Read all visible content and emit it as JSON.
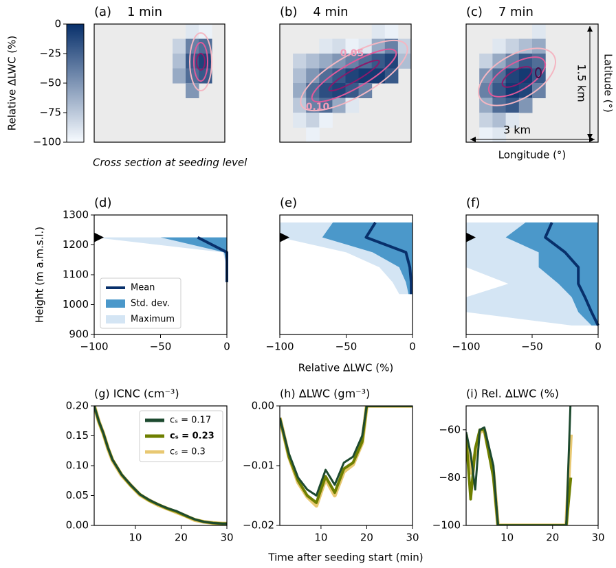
{
  "figure_label_x_bottom": "Time after seeding start (min)",
  "subtitle": "Cross section at seeding level",
  "colorbar": {
    "label": "Relative ΔLWC (%)",
    "lim": [
      -100,
      0
    ],
    "colors": [
      "#f7fbff",
      "#08306b"
    ],
    "ticks": [
      0,
      {
        "value": -25,
        "label": "−25"
      },
      {
        "value": -50,
        "label": "−50"
      },
      {
        "value": -75,
        "label": "−75"
      },
      {
        "value": -100,
        "label": "−100"
      }
    ]
  },
  "chart_data": [
    {
      "type": "heatmap",
      "title": "(a)    1 min",
      "background": "#ebebeb",
      "cells": [
        [
          null,
          null,
          null,
          null,
          null,
          null,
          null,
          -90,
          -95,
          null
        ],
        [
          null,
          null,
          null,
          null,
          null,
          null,
          -80,
          -40,
          -30,
          null
        ],
        [
          null,
          null,
          null,
          null,
          null,
          null,
          -70,
          -20,
          -10,
          null
        ],
        [
          null,
          null,
          null,
          null,
          null,
          null,
          -60,
          -30,
          -20,
          null
        ],
        [
          null,
          null,
          null,
          null,
          null,
          null,
          null,
          -50,
          null,
          null
        ],
        [
          null,
          null,
          null,
          null,
          null,
          null,
          null,
          null,
          null,
          null
        ],
        [
          null,
          null,
          null,
          null,
          null,
          null,
          null,
          null,
          null,
          null
        ],
        [
          null,
          null,
          null,
          null,
          null,
          null,
          null,
          null,
          null,
          null
        ]
      ]
    },
    {
      "type": "heatmap",
      "title": "(b)    4 min",
      "background": "#ebebeb",
      "contour_labels": [
        0.05,
        {
          "value": 0.1,
          "label": "0.10"
        }
      ],
      "cells": [
        [
          null,
          null,
          null,
          null,
          null,
          null,
          null,
          -90,
          -95,
          null
        ],
        [
          null,
          null,
          null,
          -90,
          -85,
          -95,
          -90,
          -60,
          -40,
          -80
        ],
        [
          null,
          -80,
          -70,
          -60,
          -50,
          -40,
          -30,
          -20,
          -10,
          -70
        ],
        [
          null,
          -70,
          -50,
          -30,
          -20,
          -10,
          -5,
          -5,
          -20,
          null
        ],
        [
          null,
          -60,
          -30,
          -15,
          -10,
          -20,
          -40,
          null,
          null,
          null
        ],
        [
          null,
          -75,
          -40,
          -30,
          -60,
          -90,
          null,
          null,
          null,
          null
        ],
        [
          null,
          -90,
          -80,
          -95,
          null,
          null,
          null,
          null,
          null,
          null
        ],
        [
          null,
          null,
          -95,
          null,
          null,
          null,
          null,
          null,
          null,
          null
        ]
      ]
    },
    {
      "type": "heatmap",
      "title": "(c)    7 min",
      "background": "#ebebeb",
      "xlabel": "Longitude (°)",
      "ylabel": "Latitude (°)",
      "scale_x": "3 km",
      "scale_y": "1.5 km",
      "cells": [
        [
          null,
          null,
          null,
          null,
          null,
          -90,
          null,
          null,
          null,
          null
        ],
        [
          null,
          null,
          -90,
          -80,
          -70,
          -60,
          null,
          null,
          null,
          null
        ],
        [
          null,
          -80,
          -60,
          -40,
          -20,
          -30,
          null,
          null,
          null,
          null
        ],
        [
          null,
          -50,
          -30,
          -10,
          -5,
          -20,
          null,
          null,
          null,
          null
        ],
        [
          null,
          -40,
          -20,
          -5,
          -10,
          -40,
          null,
          null,
          null,
          null
        ],
        [
          null,
          -60,
          -30,
          -20,
          -50,
          null,
          null,
          null,
          null,
          null
        ],
        [
          null,
          -80,
          -70,
          -90,
          null,
          null,
          null,
          null,
          null,
          null
        ],
        [
          null,
          -95,
          -90,
          null,
          null,
          null,
          null,
          null,
          null,
          null
        ]
      ]
    },
    {
      "type": "profile",
      "title": "(d)",
      "ylabel": "Height (m a.m.s.l.)",
      "legend": "lower left",
      "xlim": [
        -100,
        0
      ],
      "ylim": [
        900,
        1300
      ],
      "marker": 1225,
      "xticks": [
        {
          "value": -100,
          "label": "−100"
        },
        {
          "value": -50,
          "label": "−50"
        },
        0
      ],
      "yticks": [
        900,
        1000,
        1100,
        1200,
        1300
      ],
      "y": [
        1225,
        1175,
        1125,
        1075
      ],
      "series": [
        {
          "name": "Maximum",
          "color": "#d4e5f4",
          "lower": [
            -100,
            -3,
            0,
            0
          ],
          "upper": [
            0,
            0,
            0,
            0
          ]
        },
        {
          "name": "Std. dev.",
          "color": "#4b98ca",
          "lower": [
            -50,
            -2,
            0,
            0
          ],
          "upper": [
            0,
            0,
            0,
            0
          ]
        },
        {
          "name": "Mean",
          "color": "#08306b",
          "values": [
            -22,
            0,
            0,
            0
          ]
        }
      ]
    },
    {
      "type": "profile",
      "title": "(e)",
      "xlabel": "Relative ΔLWC (%)",
      "xlim": [
        -100,
        0
      ],
      "ylim": [
        900,
        1300
      ],
      "marker": 1225,
      "xticks": [
        {
          "value": -100,
          "label": "−100"
        },
        {
          "value": -50,
          "label": "−50"
        },
        0
      ],
      "y": [
        1275,
        1225,
        1175,
        1125,
        1075,
        1035
      ],
      "series": [
        {
          "color": "#d4e5f4",
          "lower": [
            -100,
            -100,
            -50,
            -25,
            -15,
            -10
          ],
          "upper": [
            0,
            0,
            0,
            0,
            0,
            0
          ]
        },
        {
          "color": "#4b98ca",
          "lower": [
            -60,
            -68,
            -30,
            -10,
            -5,
            -3
          ],
          "upper": [
            0,
            0,
            0,
            0,
            0,
            0
          ]
        },
        {
          "color": "#08306b",
          "values": [
            -28,
            -35,
            -5,
            -2,
            -1,
            -1
          ]
        }
      ]
    },
    {
      "type": "profile",
      "title": "(f)",
      "xlim": [
        -100,
        0
      ],
      "ylim": [
        900,
        1300
      ],
      "marker": 1225,
      "xticks": [
        {
          "value": -100,
          "label": "−100"
        },
        {
          "value": -50,
          "label": "−50"
        },
        0
      ],
      "y": [
        1275,
        1225,
        1175,
        1125,
        1070,
        1025,
        975,
        930
      ],
      "series": [
        {
          "color": "#d4e5f4",
          "lower": [
            -100,
            -100,
            -100,
            -100,
            -68,
            -100,
            -100,
            -20
          ],
          "upper": [
            0,
            0,
            0,
            0,
            0,
            0,
            0,
            0
          ]
        },
        {
          "color": "#4b98ca",
          "lower": [
            -55,
            -70,
            -45,
            -45,
            -30,
            -20,
            -15,
            -5
          ],
          "upper": [
            0,
            0,
            0,
            0,
            0,
            0,
            0,
            0
          ]
        },
        {
          "color": "#08306b",
          "values": [
            -35,
            -40,
            -25,
            -15,
            -15,
            -10,
            -5,
            0
          ]
        }
      ]
    },
    {
      "type": "line",
      "title": "(g) ICNC (cm⁻³)",
      "legend": "upper right",
      "xlim": [
        1,
        30
      ],
      "ylim": [
        0,
        0.2
      ],
      "xticks": [
        10,
        20,
        30
      ],
      "yticks": [
        {
          "value": 0,
          "label": "0.00"
        },
        0.05,
        {
          "value": 0.1,
          "label": "0.10"
        },
        0.15,
        {
          "value": 0.2,
          "label": "0.20"
        }
      ],
      "x": [
        1,
        2,
        3,
        4,
        5,
        7,
        9,
        11,
        13,
        15,
        17,
        19,
        21,
        23,
        25,
        27,
        29,
        30
      ],
      "series": [
        {
          "name": "cₛ = 0.17",
          "color": "#1d4a2f",
          "values": [
            0.2,
            0.175,
            0.155,
            0.13,
            0.11,
            0.085,
            0.068,
            0.052,
            0.043,
            0.035,
            0.029,
            0.024,
            0.017,
            0.01,
            0.006,
            0.004,
            0.003,
            0.003
          ]
        },
        {
          "name": "cₛ = 0.23",
          "bold": true,
          "color": "#6e7f00",
          "values": [
            0.2,
            0.174,
            0.154,
            0.13,
            0.11,
            0.085,
            0.067,
            0.052,
            0.042,
            0.035,
            0.028,
            0.023,
            0.016,
            0.01,
            0.006,
            0.004,
            0.003,
            0.003
          ]
        },
        {
          "name": "cₛ = 0.3",
          "color": "#e8c872",
          "values": [
            0.2,
            0.174,
            0.154,
            0.129,
            0.109,
            0.084,
            0.067,
            0.051,
            0.042,
            0.034,
            0.028,
            0.022,
            0.016,
            0.009,
            0.006,
            0.004,
            0.003,
            0.003
          ]
        }
      ]
    },
    {
      "type": "line",
      "title": "(h) ΔLWC (gm⁻³)",
      "xlim": [
        1,
        30
      ],
      "ylim": [
        -0.02,
        0
      ],
      "xticks": [
        10,
        20,
        30
      ],
      "yticks": [
        {
          "value": -0.02,
          "label": "−0.02"
        },
        {
          "value": -0.01,
          "label": "−0.01"
        },
        {
          "value": 0,
          "label": "0.00"
        }
      ],
      "x": [
        1,
        3,
        5,
        7,
        9,
        11,
        13,
        15,
        17,
        19,
        20,
        25,
        30
      ],
      "series": [
        {
          "color": "#1d4a2f",
          "values": [
            -0.002,
            -0.008,
            -0.012,
            -0.014,
            -0.015,
            -0.0107,
            -0.0132,
            -0.0095,
            -0.0085,
            -0.005,
            0,
            0,
            0
          ]
        },
        {
          "color": "#6e7f00",
          "values": [
            -0.002,
            -0.0085,
            -0.0125,
            -0.015,
            -0.0162,
            -0.0118,
            -0.0145,
            -0.0105,
            -0.0095,
            -0.006,
            0,
            0,
            0
          ]
        },
        {
          "color": "#e8c872",
          "values": [
            -0.002,
            -0.0085,
            -0.0128,
            -0.0152,
            -0.0167,
            -0.0122,
            -0.015,
            -0.011,
            -0.0098,
            -0.0062,
            0,
            0,
            0
          ]
        }
      ]
    },
    {
      "type": "line",
      "title": "(i) Rel. ΔLWC (%)",
      "xlim": [
        1,
        30
      ],
      "ylim": [
        -100,
        -50
      ],
      "xticks": [
        10,
        20,
        30
      ],
      "yticks": [
        {
          "value": -100,
          "label": "−100"
        },
        {
          "value": -80,
          "label": "−80"
        },
        {
          "value": -60,
          "label": "−60"
        }
      ],
      "x": [
        1,
        2,
        3,
        4,
        5,
        7,
        8,
        15,
        23,
        24
      ],
      "series": [
        {
          "color": "#1d4a2f",
          "values": [
            -61,
            -70,
            -85,
            -60,
            -59,
            -75,
            -100,
            -100,
            -100,
            -45
          ]
        },
        {
          "color": "#6e7f00",
          "values": [
            -63,
            -89,
            -68,
            -60,
            -60,
            -80,
            -100,
            -100,
            -100,
            -80
          ]
        },
        {
          "color": "#e8c872",
          "values": [
            -62,
            -78,
            -70,
            -61,
            -60,
            -78,
            -100,
            -100,
            -100,
            -62
          ]
        }
      ]
    }
  ]
}
